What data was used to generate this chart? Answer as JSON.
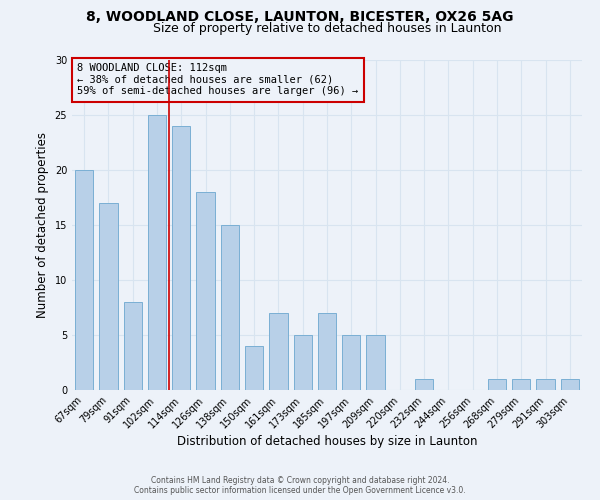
{
  "title1": "8, WOODLAND CLOSE, LAUNTON, BICESTER, OX26 5AG",
  "title2": "Size of property relative to detached houses in Launton",
  "xlabel": "Distribution of detached houses by size in Launton",
  "ylabel": "Number of detached properties",
  "categories": [
    "67sqm",
    "79sqm",
    "91sqm",
    "102sqm",
    "114sqm",
    "126sqm",
    "138sqm",
    "150sqm",
    "161sqm",
    "173sqm",
    "185sqm",
    "197sqm",
    "209sqm",
    "220sqm",
    "232sqm",
    "244sqm",
    "256sqm",
    "268sqm",
    "279sqm",
    "291sqm",
    "303sqm"
  ],
  "values": [
    20,
    17,
    8,
    25,
    24,
    18,
    15,
    4,
    7,
    5,
    7,
    5,
    5,
    0,
    1,
    0,
    0,
    1,
    1,
    1,
    1
  ],
  "bar_color": "#b8d0e8",
  "bar_edge_color": "#7aafd4",
  "ref_line_color": "#cc0000",
  "annotation_line1": "8 WOODLAND CLOSE: 112sqm",
  "annotation_line2": "← 38% of detached houses are smaller (62)",
  "annotation_line3": "59% of semi-detached houses are larger (96) →",
  "annotation_box_edge_color": "#cc0000",
  "ylim": [
    0,
    30
  ],
  "yticks": [
    0,
    5,
    10,
    15,
    20,
    25,
    30
  ],
  "footer1": "Contains HM Land Registry data © Crown copyright and database right 2024.",
  "footer2": "Contains public sector information licensed under the Open Government Licence v3.0.",
  "bg_color": "#edf2f9",
  "grid_color": "#d8e4f0",
  "title1_fontsize": 10,
  "title2_fontsize": 9,
  "tick_fontsize": 7,
  "ylabel_fontsize": 8.5,
  "xlabel_fontsize": 8.5,
  "annotation_fontsize": 7.5,
  "footer_fontsize": 5.5,
  "bar_width": 0.75
}
